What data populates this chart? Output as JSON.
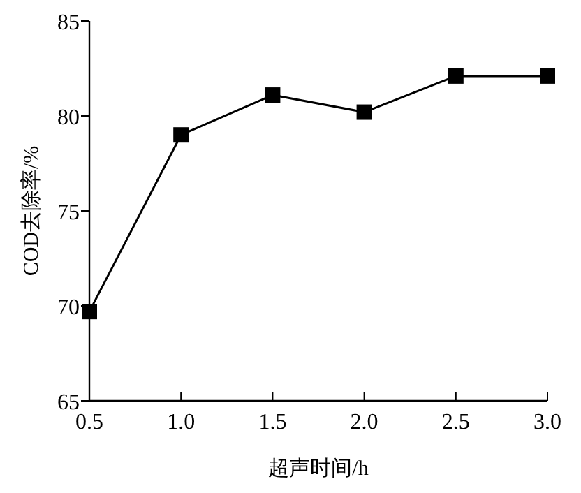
{
  "chart_data": {
    "type": "line",
    "xlabel": "超声时间/h",
    "ylabel": "COD去除率/%",
    "x": [
      0.5,
      1.0,
      1.5,
      2.0,
      2.5,
      3.0
    ],
    "series": [
      {
        "color": "#000000",
        "values": [
          69.7,
          79.0,
          81.1,
          80.2,
          82.1,
          82.1
        ]
      }
    ],
    "xlim": [
      0.5,
      3.0
    ],
    "xticks": [
      {
        "value": 0.5,
        "label": "0.5"
      },
      {
        "value": 1.0,
        "label": "1.0"
      },
      {
        "value": 1.5,
        "label": "1.5"
      },
      {
        "value": 2.0,
        "label": "2.0"
      },
      {
        "value": 2.5,
        "label": "2.5"
      },
      {
        "value": 3.0,
        "label": "3.0"
      }
    ],
    "ylim": [
      65,
      85
    ],
    "yticks": [
      65,
      70,
      75,
      80,
      85
    ],
    "marker": "square",
    "line_style": "solid",
    "grid": false
  }
}
